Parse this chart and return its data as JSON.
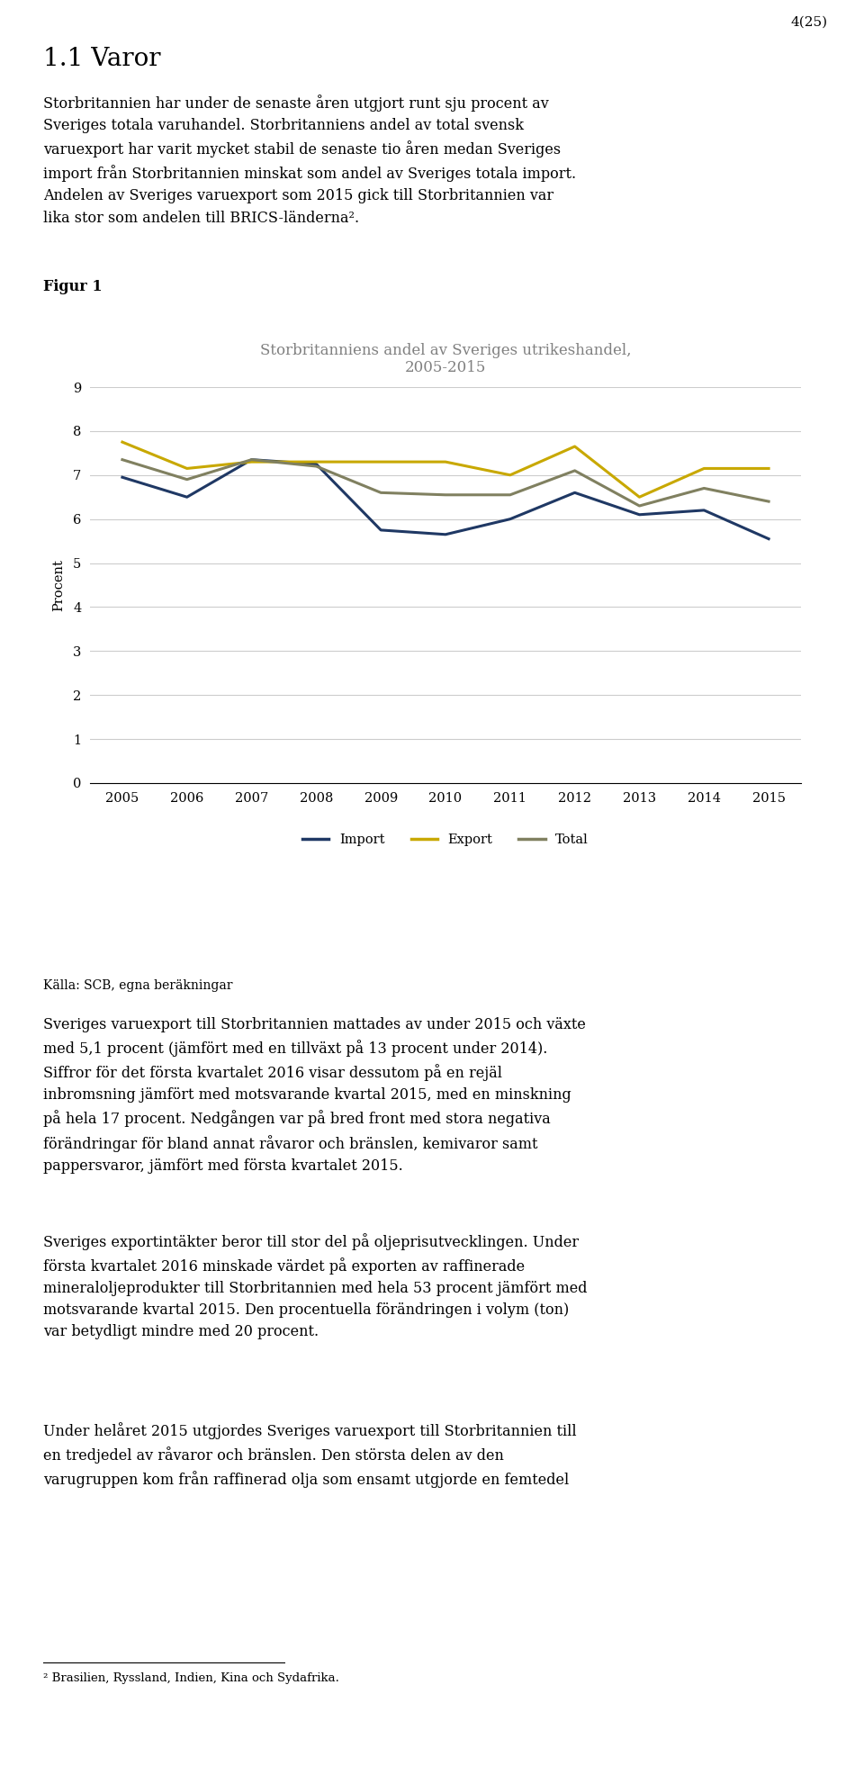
{
  "page_number": "4(25)",
  "heading": "1.1 Varor",
  "para1_lines": [
    "Storbritannien har under de senaste åren utgjort runt sju procent av",
    "Sveriges totala varuhandel. Storbritanniens andel av total svensk",
    "varuexport har varit mycket stabil de senaste tio åren medan Sveriges",
    "import från Storbritannien minskat som andel av Sveriges totala import.",
    "Andelen av Sveriges varuexport som 2015 gick till Storbritannien var",
    "lika stor som andelen till BRICS-länderna²."
  ],
  "figur_label": "Figur 1",
  "chart_title": "Storbritanniens andel av Sveriges utrikeshandel,\n2005-2015",
  "ylabel": "Procent",
  "years": [
    2005,
    2006,
    2007,
    2008,
    2009,
    2010,
    2011,
    2012,
    2013,
    2014,
    2015
  ],
  "import_data": [
    6.95,
    6.5,
    7.35,
    7.25,
    5.75,
    5.65,
    6.0,
    6.6,
    6.1,
    6.2,
    5.55
  ],
  "export_data": [
    7.75,
    7.15,
    7.3,
    7.3,
    7.3,
    7.3,
    7.0,
    7.65,
    6.5,
    7.15,
    7.15
  ],
  "total_data": [
    7.35,
    6.9,
    7.35,
    7.2,
    6.6,
    6.55,
    6.55,
    7.1,
    6.3,
    6.7,
    6.4
  ],
  "import_color": "#1f3864",
  "export_color": "#c8a800",
  "total_color": "#808060",
  "ylim": [
    0,
    9
  ],
  "yticks": [
    0,
    1,
    2,
    3,
    4,
    5,
    6,
    7,
    8,
    9
  ],
  "kalla": "Källa: SCB, egna beräkningar",
  "para2_lines": [
    "Sveriges varuexport till Storbritannien mattades av under 2015 och växte",
    "med 5,1 procent (jämfört med en tillväxt på 13 procent under 2014).",
    "Siffror för det första kvartalet 2016 visar dessutom på en rejäl",
    "inbromsning jämfört med motsvarande kvartal 2015, med en minskning",
    "på hela 17 procent. Nedgången var på bred front med stora negativa",
    "förändringar för bland annat råvaror och bränslen, kemivaror samt",
    "pappersvaror, jämfört med första kvartalet 2015."
  ],
  "para3_lines": [
    "Sveriges exportintäkter beror till stor del på oljeprisutvecklingen. Under",
    "första kvartalet 2016 minskade värdet på exporten av raffinerade",
    "mineraloljeprodukter till Storbritannien med hela 53 procent jämfört med",
    "motsvarande kvartal 2015. Den procentuella förändringen i volym (ton)",
    "var betydligt mindre med 20 procent."
  ],
  "para4_lines": [
    "Under helåret 2015 utgjordes Sveriges varuexport till Storbritannien till",
    "en tredjedel av råvaror och bränslen. Den största delen av den",
    "varugruppen kom från raffinerad olja som ensamt utgjorde en femtedel"
  ],
  "footnote": "² Brasilien, Ryssland, Indien, Kina och Sydafrika."
}
